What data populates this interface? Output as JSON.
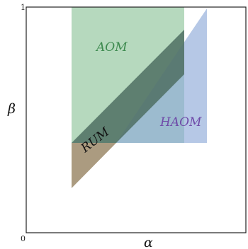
{
  "axes": {
    "x_label": "α",
    "y_label": "β",
    "origin_tick": "0",
    "y_max_tick": "1"
  },
  "regions": {
    "aom": {
      "label": "AOM",
      "fill": "#8fc49b",
      "label_color": "#3d8a4f"
    },
    "haom": {
      "label": "HAOM",
      "fill": "#8fabd9",
      "label_color": "#6f4aa8"
    },
    "rum": {
      "label": "RUM",
      "fill": "#9c8a6a",
      "label_color": "#111111"
    },
    "overlap_fill": "#4f6f63"
  }
}
